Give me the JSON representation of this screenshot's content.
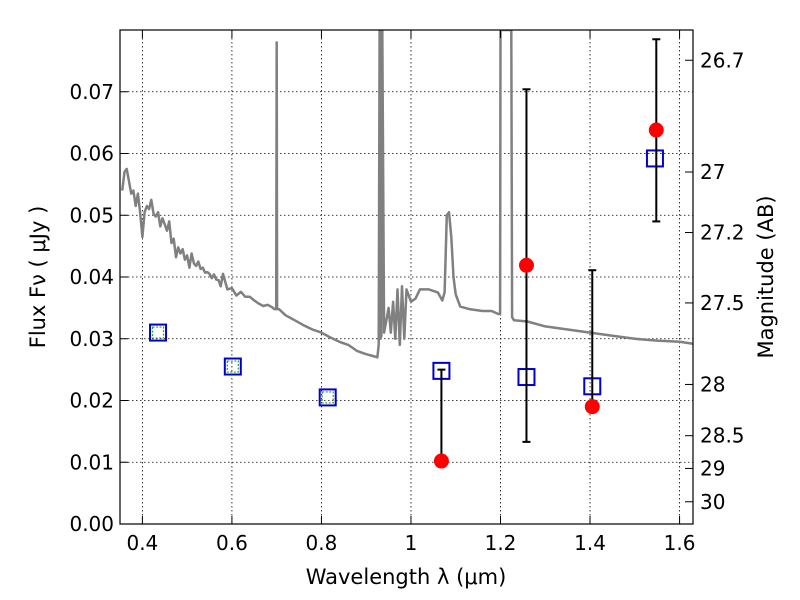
{
  "chart_data": {
    "type": "scatter",
    "title": "",
    "xlabel": "Wavelength  λ (μm)",
    "ylabel": "Flux  Fν  ( μJy )",
    "y2label": "Magnitude (AB)",
    "xlim": [
      0.35,
      1.63
    ],
    "ylim": [
      0.0,
      0.08
    ],
    "grid": true,
    "x_ticks": [
      0.4,
      0.6,
      0.8,
      1.0,
      1.2,
      1.4,
      1.6
    ],
    "x_tick_labels": [
      "0.4",
      "0.6",
      "0.8",
      "1",
      "1.2",
      "1.4",
      "1.6"
    ],
    "y_ticks": [
      0.0,
      0.01,
      0.02,
      0.03,
      0.04,
      0.05,
      0.06,
      0.07
    ],
    "y_tick_labels": [
      "0.00",
      "0.01",
      "0.02",
      "0.03",
      "0.04",
      "0.05",
      "0.06",
      "0.07"
    ],
    "y2_ticks": [
      {
        "flux": 0.0751,
        "label": "26.7"
      },
      {
        "flux": 0.057,
        "label": "27"
      },
      {
        "flux": 0.0472,
        "label": "27.2"
      },
      {
        "flux": 0.0358,
        "label": "27.5"
      },
      {
        "flux": 0.0226,
        "label": "28"
      },
      {
        "flux": 0.0143,
        "label": "28.5"
      },
      {
        "flux": 0.009,
        "label": "29"
      },
      {
        "flux": 0.0036,
        "label": "30"
      }
    ],
    "series": [
      {
        "style": "line",
        "color": "#808080",
        "x": [
          0.355,
          0.36,
          0.365,
          0.37,
          0.375,
          0.38,
          0.385,
          0.39,
          0.395,
          0.4,
          0.405,
          0.41,
          0.415,
          0.42,
          0.425,
          0.43,
          0.435,
          0.44,
          0.445,
          0.45,
          0.455,
          0.46,
          0.465,
          0.47,
          0.475,
          0.48,
          0.485,
          0.49,
          0.495,
          0.5,
          0.505,
          0.51,
          0.515,
          0.52,
          0.525,
          0.53,
          0.535,
          0.54,
          0.545,
          0.55,
          0.555,
          0.56,
          0.565,
          0.57,
          0.575,
          0.58,
          0.59,
          0.6,
          0.61,
          0.62,
          0.63,
          0.64,
          0.65,
          0.66,
          0.67,
          0.68,
          0.69,
          0.695,
          0.699,
          0.7,
          0.701,
          0.705,
          0.72,
          0.74,
          0.76,
          0.78,
          0.8,
          0.82,
          0.84,
          0.86,
          0.88,
          0.9,
          0.915,
          0.925,
          0.928,
          0.93,
          0.931,
          0.932,
          0.934,
          0.936,
          0.94,
          0.945,
          0.95,
          0.955,
          0.96,
          0.965,
          0.97,
          0.975,
          0.98,
          0.985,
          0.99,
          1.0,
          1.01,
          1.02,
          1.04,
          1.06,
          1.07,
          1.075,
          1.08,
          1.085,
          1.09,
          1.095,
          1.1,
          1.11,
          1.13,
          1.16,
          1.18,
          1.195,
          1.199,
          1.2,
          1.203,
          1.215,
          1.22,
          1.224,
          1.226,
          1.23,
          1.26,
          1.3,
          1.35,
          1.4,
          1.45,
          1.5,
          1.55,
          1.6,
          1.63
        ],
        "y": [
          0.054,
          0.057,
          0.0575,
          0.0555,
          0.0535,
          0.054,
          0.0515,
          0.0535,
          0.0505,
          0.0465,
          0.0505,
          0.0515,
          0.051,
          0.0525,
          0.0502,
          0.0498,
          0.0505,
          0.0482,
          0.0495,
          0.0485,
          0.0475,
          0.049,
          0.0455,
          0.0462,
          0.0432,
          0.0448,
          0.0438,
          0.0445,
          0.0428,
          0.0435,
          0.0415,
          0.0438,
          0.0422,
          0.0418,
          0.0425,
          0.0413,
          0.0415,
          0.0407,
          0.0408,
          0.0405,
          0.0398,
          0.0404,
          0.0396,
          0.0395,
          0.0385,
          0.0405,
          0.038,
          0.0382,
          0.037,
          0.0376,
          0.0368,
          0.0368,
          0.0362,
          0.0357,
          0.0353,
          0.0355,
          0.0351,
          0.0348,
          0.0348,
          0.078,
          0.0348,
          0.0348,
          0.0338,
          0.033,
          0.0322,
          0.0315,
          0.031,
          0.0302,
          0.0295,
          0.029,
          0.028,
          0.0275,
          0.0272,
          0.027,
          0.029,
          0.08,
          0.08,
          0.03,
          0.0305,
          0.08,
          0.031,
          0.033,
          0.035,
          0.031,
          0.036,
          0.03,
          0.038,
          0.029,
          0.0385,
          0.03,
          0.038,
          0.036,
          0.0365,
          0.038,
          0.038,
          0.0375,
          0.0362,
          0.0375,
          0.05,
          0.0505,
          0.0465,
          0.04,
          0.0372,
          0.0352,
          0.0348,
          0.0345,
          0.0345,
          0.034,
          0.034,
          0.08,
          0.08,
          0.08,
          0.08,
          0.08,
          0.0335,
          0.033,
          0.0328,
          0.032,
          0.0315,
          0.031,
          0.0305,
          0.03,
          0.0297,
          0.0295,
          0.0292
        ]
      },
      {
        "style": "open-square",
        "color": "#0000cc",
        "x": [
          0.435,
          0.602,
          0.814,
          1.068,
          1.258,
          1.405,
          1.545
        ],
        "y": [
          0.031,
          0.0255,
          0.0205,
          0.0248,
          0.0238,
          0.0223,
          0.0592
        ]
      },
      {
        "style": "small-square",
        "color": "#2ca02c",
        "x": [
          0.435,
          0.602,
          0.814
        ],
        "y": [
          0.031,
          0.0255,
          0.0205
        ]
      },
      {
        "style": "point-errorbar",
        "color": "#ff0000",
        "x": [
          1.068,
          1.258,
          1.405,
          1.548
        ],
        "y": [
          0.0102,
          0.0419,
          0.019,
          0.0638
        ],
        "yerr_low": [
          0.0102,
          0.0133,
          0.019,
          0.049
        ],
        "yerr_high": [
          0.025,
          0.0704,
          0.0411,
          0.0785
        ]
      }
    ]
  }
}
